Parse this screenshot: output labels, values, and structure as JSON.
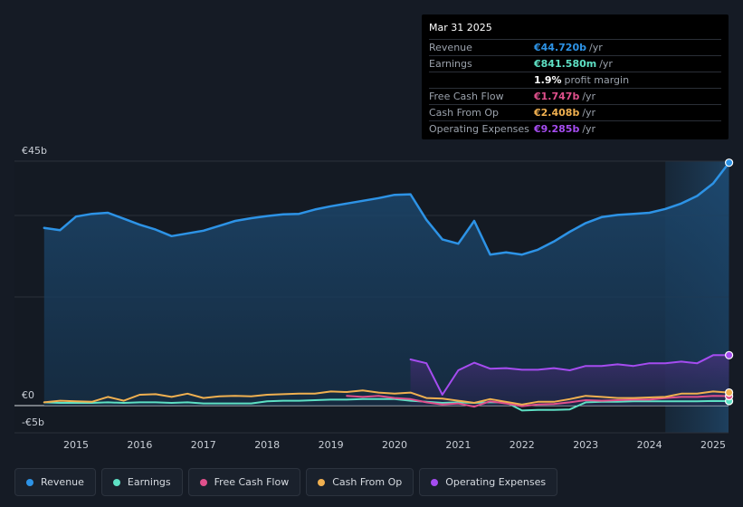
{
  "tooltip": {
    "date": "Mar 31 2025",
    "rows": [
      {
        "label": "Revenue",
        "value": "€44.720b",
        "unit": "/yr",
        "color": "#2d93e6"
      },
      {
        "label": "Earnings",
        "value": "€841.580m",
        "unit": "/yr",
        "color": "#5ee0c4"
      },
      {
        "label": "",
        "value": "1.9%",
        "unit": "profit margin",
        "color": "#ffffff"
      },
      {
        "label": "Free Cash Flow",
        "value": "€1.747b",
        "unit": "/yr",
        "color": "#e0508c"
      },
      {
        "label": "Cash From Op",
        "value": "€2.408b",
        "unit": "/yr",
        "color": "#f0b050"
      },
      {
        "label": "Operating Expenses",
        "value": "€9.285b",
        "unit": "/yr",
        "color": "#a54cf0"
      }
    ]
  },
  "legend": [
    {
      "label": "Revenue",
      "color": "#2d93e6"
    },
    {
      "label": "Earnings",
      "color": "#5ee0c4"
    },
    {
      "label": "Free Cash Flow",
      "color": "#e0508c"
    },
    {
      "label": "Cash From Op",
      "color": "#f0b050"
    },
    {
      "label": "Operating Expenses",
      "color": "#a54cf0"
    }
  ],
  "chart_data": {
    "type": "area",
    "title": "",
    "xlabel": "",
    "ylabel": "",
    "y_tick_labels": [
      "€45b",
      "€0",
      "-€5b"
    ],
    "x_tick_labels": [
      "2015",
      "2016",
      "2017",
      "2018",
      "2019",
      "2020",
      "2021",
      "2022",
      "2023",
      "2024",
      "2025"
    ],
    "ylim": [
      -5,
      45
    ],
    "xlim": [
      2014.45,
      2025.35
    ],
    "series": [
      {
        "name": "Revenue",
        "color": "#2d93e6",
        "fill": true,
        "x": [
          2014.5,
          2014.75,
          2015.0,
          2015.25,
          2015.5,
          2015.75,
          2016.0,
          2016.25,
          2016.5,
          2016.75,
          2017.0,
          2017.25,
          2017.5,
          2017.75,
          2018.0,
          2018.25,
          2018.5,
          2018.75,
          2019.0,
          2019.25,
          2019.5,
          2019.75,
          2020.0,
          2020.25,
          2020.5,
          2020.75,
          2021.0,
          2021.25,
          2021.5,
          2021.75,
          2022.0,
          2022.25,
          2022.5,
          2022.75,
          2023.0,
          2023.25,
          2023.5,
          2023.75,
          2024.0,
          2024.25,
          2024.5,
          2024.75,
          2025.0,
          2025.25
        ],
        "values": [
          32.7,
          32.3,
          34.8,
          35.3,
          35.5,
          34.4,
          33.3,
          32.4,
          31.2,
          31.7,
          32.2,
          33.1,
          34.0,
          34.5,
          34.9,
          35.2,
          35.3,
          36.1,
          36.7,
          37.2,
          37.7,
          38.2,
          38.8,
          38.9,
          34.2,
          30.6,
          29.8,
          34.0,
          27.8,
          28.2,
          27.8,
          28.7,
          30.2,
          32.0,
          33.6,
          34.7,
          35.1,
          35.3,
          35.5,
          36.2,
          37.2,
          38.6,
          40.9,
          44.72
        ]
      },
      {
        "name": "Operating Expenses",
        "color": "#a54cf0",
        "fill": true,
        "x": [
          2020.25,
          2020.5,
          2020.75,
          2021.0,
          2021.25,
          2021.5,
          2021.75,
          2022.0,
          2022.25,
          2022.5,
          2022.75,
          2023.0,
          2023.25,
          2023.5,
          2023.75,
          2024.0,
          2024.25,
          2024.5,
          2024.75,
          2025.0,
          2025.25
        ],
        "values": [
          8.5,
          7.8,
          2.0,
          6.5,
          7.9,
          6.8,
          6.9,
          6.6,
          6.6,
          6.9,
          6.5,
          7.3,
          7.3,
          7.6,
          7.3,
          7.8,
          7.8,
          8.1,
          7.8,
          9.285,
          9.285
        ]
      },
      {
        "name": "Cash From Op",
        "color": "#f0b050",
        "fill": false,
        "x": [
          2014.5,
          2014.75,
          2015.0,
          2015.25,
          2015.5,
          2015.75,
          2016.0,
          2016.25,
          2016.5,
          2016.75,
          2017.0,
          2017.25,
          2017.5,
          2017.75,
          2018.0,
          2018.25,
          2018.5,
          2018.75,
          2019.0,
          2019.25,
          2019.5,
          2019.75,
          2020.0,
          2020.25,
          2020.5,
          2020.75,
          2021.0,
          2021.25,
          2021.5,
          2021.75,
          2022.0,
          2022.25,
          2022.5,
          2022.75,
          2023.0,
          2023.25,
          2023.5,
          2023.75,
          2024.0,
          2024.25,
          2024.5,
          2024.75,
          2025.0,
          2025.25
        ],
        "values": [
          0.6,
          0.9,
          0.8,
          0.7,
          1.6,
          0.9,
          2.0,
          2.1,
          1.6,
          2.2,
          1.4,
          1.7,
          1.8,
          1.7,
          2.0,
          2.1,
          2.2,
          2.2,
          2.6,
          2.5,
          2.8,
          2.4,
          2.2,
          2.4,
          1.4,
          1.3,
          0.9,
          0.5,
          1.2,
          0.7,
          0.2,
          0.7,
          0.7,
          1.2,
          1.8,
          1.6,
          1.4,
          1.4,
          1.5,
          1.6,
          2.2,
          2.2,
          2.6,
          2.408
        ]
      },
      {
        "name": "Free Cash Flow",
        "color": "#e0508c",
        "fill": false,
        "x": [
          2019.25,
          2019.5,
          2019.75,
          2020.0,
          2020.25,
          2020.5,
          2020.75,
          2021.0,
          2021.25,
          2021.5,
          2021.75,
          2022.0,
          2022.25,
          2022.5,
          2022.75,
          2023.0,
          2023.25,
          2023.5,
          2023.75,
          2024.0,
          2024.25,
          2024.5,
          2024.75,
          2025.0,
          2025.25
        ],
        "values": [
          1.8,
          1.6,
          1.8,
          1.4,
          1.2,
          0.6,
          0.2,
          0.4,
          -0.2,
          0.8,
          0.4,
          -0.1,
          0.2,
          0.3,
          0.6,
          1.0,
          0.9,
          1.0,
          1.1,
          1.1,
          1.4,
          1.6,
          1.6,
          1.8,
          1.747
        ]
      },
      {
        "name": "Earnings",
        "color": "#5ee0c4",
        "fill": false,
        "x": [
          2014.5,
          2014.75,
          2015.0,
          2015.25,
          2015.5,
          2015.75,
          2016.0,
          2016.25,
          2016.5,
          2016.75,
          2017.0,
          2017.25,
          2017.5,
          2017.75,
          2018.0,
          2018.25,
          2018.5,
          2018.75,
          2019.0,
          2019.25,
          2019.5,
          2019.75,
          2020.0,
          2020.25,
          2020.5,
          2020.75,
          2021.0,
          2021.25,
          2021.5,
          2021.75,
          2022.0,
          2022.25,
          2022.5,
          2022.75,
          2023.0,
          2023.25,
          2023.5,
          2023.75,
          2024.0,
          2024.25,
          2024.5,
          2024.75,
          2025.0,
          2025.25
        ],
        "values": [
          0.6,
          0.5,
          0.5,
          0.5,
          0.6,
          0.5,
          0.6,
          0.6,
          0.5,
          0.6,
          0.4,
          0.4,
          0.4,
          0.4,
          0.8,
          0.9,
          0.9,
          1.0,
          1.1,
          1.1,
          1.2,
          1.2,
          1.2,
          0.9,
          0.7,
          0.5,
          0.6,
          0.5,
          0.6,
          0.6,
          -0.9,
          -0.8,
          -0.8,
          -0.7,
          0.6,
          0.7,
          0.7,
          0.8,
          0.8,
          0.8,
          0.8,
          0.8,
          0.85,
          0.84
        ]
      }
    ]
  }
}
